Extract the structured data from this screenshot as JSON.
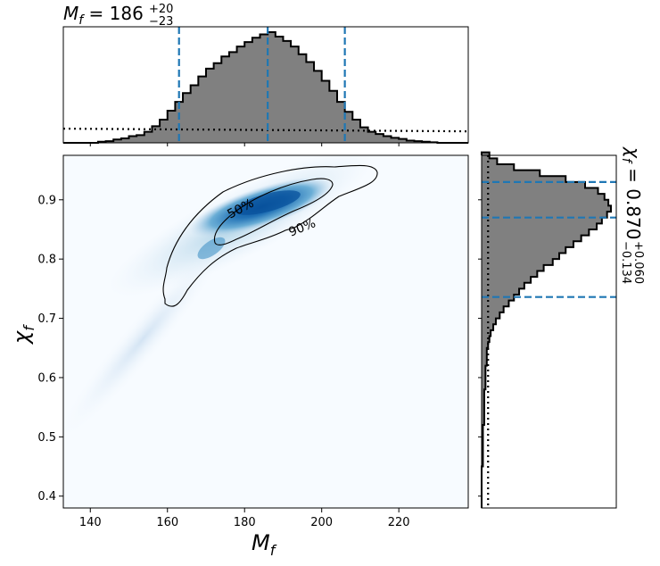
{
  "chart_data": {
    "type": "corner",
    "top_title": {
      "base": "M",
      "sub": "f",
      "eq": " = 186",
      "sup": "+20",
      "low": "−23"
    },
    "right_title": {
      "base": "χ",
      "sub": "f",
      "eq": " = 0.870",
      "sup": "+0.060",
      "low": "−0.134"
    },
    "xlabel": {
      "base": "M",
      "sub": "f"
    },
    "ylabel": {
      "base": "χ",
      "sub": "f"
    },
    "xlim": [
      133,
      238
    ],
    "ylim": [
      0.38,
      0.975
    ],
    "x_ticks": [
      "140",
      "160",
      "180",
      "200",
      "220"
    ],
    "y_ticks": [
      "0.4",
      "0.5",
      "0.6",
      "0.7",
      "0.8",
      "0.9"
    ],
    "mass_median": 186,
    "mass_interval": [
      163,
      206
    ],
    "spin_median": 0.87,
    "spin_interval": [
      0.736,
      0.93
    ],
    "contour_labels": [
      "50%",
      "90%"
    ],
    "mass_histogram": {
      "bin_start": 142,
      "bin_width": 2,
      "counts": [
        0.01,
        0.015,
        0.03,
        0.04,
        0.06,
        0.07,
        0.1,
        0.15,
        0.21,
        0.29,
        0.37,
        0.45,
        0.52,
        0.6,
        0.67,
        0.72,
        0.78,
        0.82,
        0.87,
        0.91,
        0.95,
        0.98,
        1.0,
        0.96,
        0.92,
        0.87,
        0.8,
        0.73,
        0.65,
        0.56,
        0.47,
        0.37,
        0.28,
        0.21,
        0.14,
        0.1,
        0.08,
        0.06,
        0.045,
        0.035,
        0.02,
        0.015,
        0.01,
        0.005
      ]
    },
    "mass_prior_level": 0.12,
    "spin_histogram": {
      "bin_start": 0.45,
      "bin_width": 0.01,
      "counts": [
        0.01,
        0.01,
        0.01,
        0.01,
        0.01,
        0.01,
        0.01,
        0.02,
        0.02,
        0.02,
        0.02,
        0.02,
        0.02,
        0.03,
        0.03,
        0.03,
        0.03,
        0.04,
        0.04,
        0.04,
        0.05,
        0.06,
        0.07,
        0.09,
        0.11,
        0.14,
        0.17,
        0.21,
        0.25,
        0.29,
        0.33,
        0.38,
        0.43,
        0.48,
        0.55,
        0.6,
        0.65,
        0.71,
        0.77,
        0.83,
        0.89,
        0.93,
        0.97,
        1.0,
        0.98,
        0.95,
        0.9,
        0.8,
        0.65,
        0.45,
        0.25,
        0.12,
        0.06
      ]
    },
    "spin_prior_level": 0.05
  }
}
